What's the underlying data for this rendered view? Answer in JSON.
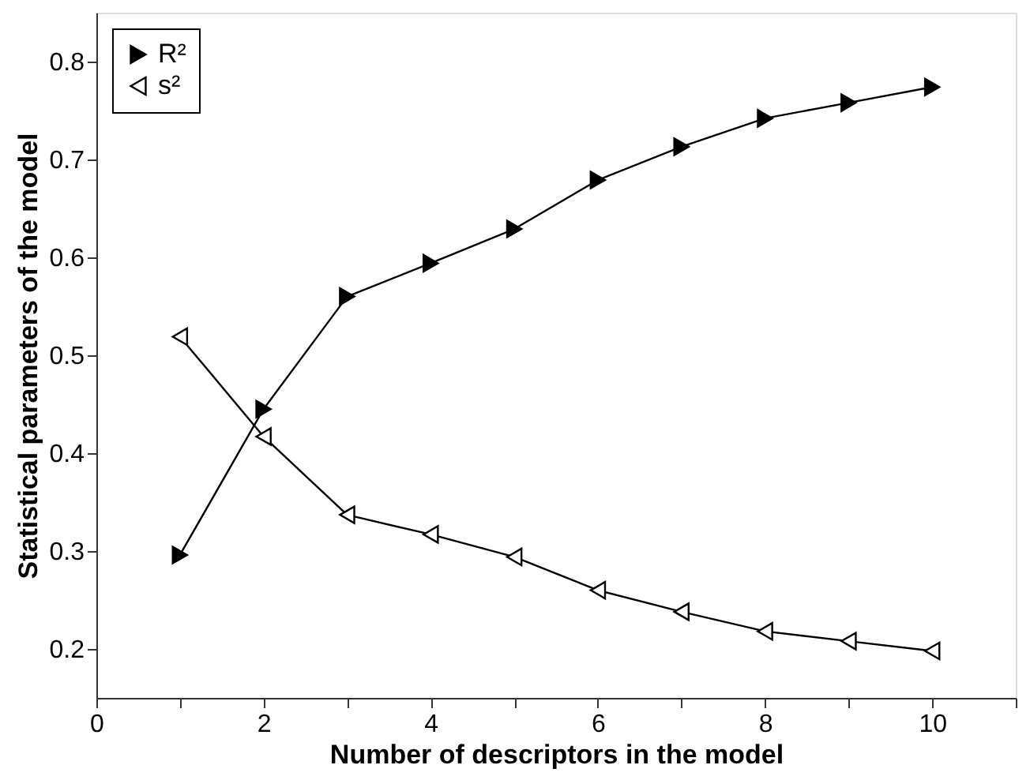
{
  "chart_data": {
    "type": "line",
    "xlabel": "Number of descriptors in the model",
    "ylabel": "Statistical parameters of the model",
    "x": [
      1,
      2,
      3,
      4,
      5,
      6,
      7,
      8,
      9,
      10
    ],
    "series": [
      {
        "name": "R²",
        "color": "#000000",
        "marker": "triangle",
        "values": [
          0.296,
          0.445,
          0.56,
          0.594,
          0.629,
          0.679,
          0.713,
          0.742,
          0.758,
          0.774
        ]
      },
      {
        "name": "s²",
        "color": "#000000",
        "marker": "triangle",
        "values": [
          0.519,
          0.417,
          0.337,
          0.317,
          0.294,
          0.26,
          0.238,
          0.218,
          0.208,
          0.198
        ]
      }
    ],
    "xlim": [
      0,
      11
    ],
    "xticks": [
      0,
      {
        "value": 1,
        "label": null
      },
      2,
      {
        "value": 3,
        "label": null
      },
      4,
      {
        "value": 5,
        "label": null
      },
      6,
      {
        "value": 7,
        "label": null
      },
      8,
      {
        "value": 9,
        "label": null
      },
      10,
      {
        "value": 11,
        "label": null
      }
    ],
    "ylim": [
      0.15,
      0.85
    ],
    "yticks": [
      0.2,
      0.3,
      0.4,
      0.5,
      0.6,
      0.7,
      0.8
    ],
    "grid": false,
    "legend": "top left",
    "line_style": "solid"
  }
}
